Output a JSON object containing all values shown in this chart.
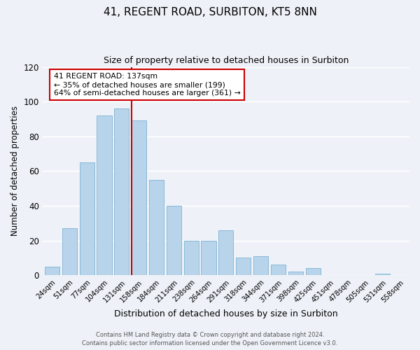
{
  "title": "41, REGENT ROAD, SURBITON, KT5 8NN",
  "subtitle": "Size of property relative to detached houses in Surbiton",
  "xlabel": "Distribution of detached houses by size in Surbiton",
  "ylabel": "Number of detached properties",
  "bin_labels": [
    "24sqm",
    "51sqm",
    "77sqm",
    "104sqm",
    "131sqm",
    "158sqm",
    "184sqm",
    "211sqm",
    "238sqm",
    "264sqm",
    "291sqm",
    "318sqm",
    "344sqm",
    "371sqm",
    "398sqm",
    "425sqm",
    "451sqm",
    "478sqm",
    "505sqm",
    "531sqm",
    "558sqm"
  ],
  "values": [
    5,
    27,
    65,
    92,
    96,
    89,
    55,
    40,
    20,
    20,
    26,
    10,
    11,
    6,
    2,
    4,
    0,
    0,
    0,
    1,
    0
  ],
  "bar_color": "#b8d4ea",
  "bar_edge_color": "#88b8d8",
  "vline_x_index": 4.58,
  "vline_color": "#cc0000",
  "annotation_title": "41 REGENT ROAD: 137sqm",
  "annotation_line1": "← 35% of detached houses are smaller (199)",
  "annotation_line2": "64% of semi-detached houses are larger (361) →",
  "annotation_box_color": "#ffffff",
  "annotation_box_edge": "#cc0000",
  "ylim": [
    0,
    120
  ],
  "yticks": [
    0,
    20,
    40,
    60,
    80,
    100,
    120
  ],
  "footer1": "Contains HM Land Registry data © Crown copyright and database right 2024.",
  "footer2": "Contains public sector information licensed under the Open Government Licence v3.0.",
  "bg_color": "#eef2f8"
}
